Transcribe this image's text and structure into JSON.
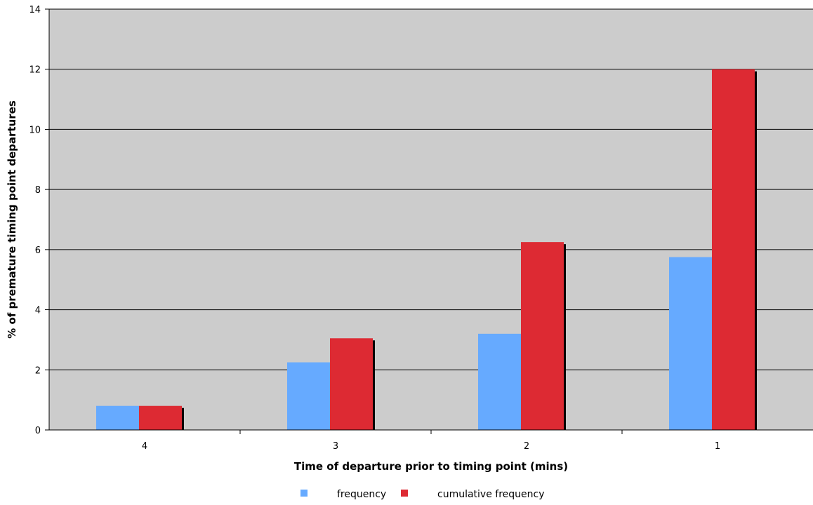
{
  "chart_data": {
    "type": "bar",
    "title": "",
    "xlabel": "Time of departure prior to timing point (mins)",
    "ylabel": "% of premature timing point departures",
    "categories": [
      "4",
      "3",
      "2",
      "1"
    ],
    "series": [
      {
        "name": "frequency",
        "values": [
          0.8,
          2.25,
          3.2,
          5.75
        ],
        "color": "#66AAFF"
      },
      {
        "name": "cumulative  frequency",
        "values": [
          0.8,
          3.05,
          6.25,
          12.0
        ],
        "color": "#DD2A33"
      }
    ],
    "ylim": [
      0,
      14
    ],
    "yticks": [
      "0",
      "2",
      "4",
      "6",
      "8",
      "10",
      "12",
      "14"
    ],
    "grid": true,
    "legend": "bottom-center",
    "plot_background": "#CCCCCC",
    "bar_shadow": "#000000"
  }
}
